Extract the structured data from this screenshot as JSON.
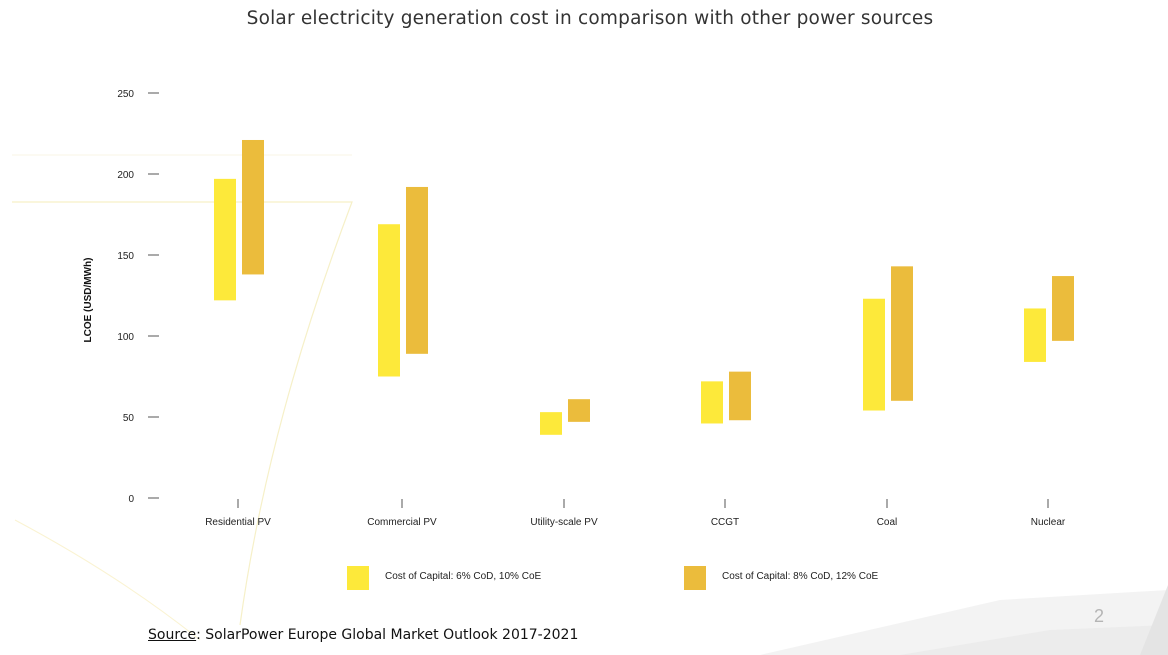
{
  "title": "Solar electricity generation cost in comparison with other power sources",
  "source": {
    "label": "Source",
    "text": ": SolarPower Europe Global Market Outlook 2017-2021"
  },
  "page_number": "2",
  "colors": {
    "series1": "#fde93a",
    "series2": "#ebbc3c",
    "text": "#222222"
  },
  "chart_data": {
    "type": "bar",
    "subtype": "floating-range",
    "title": "Solar electricity generation cost in comparison with other power sources",
    "xlabel": "",
    "ylabel": "LCOE (USD/MWh)",
    "ylim": [
      0,
      250
    ],
    "yticks": [
      0,
      50,
      100,
      150,
      200,
      250
    ],
    "grid": false,
    "legend_position": "bottom",
    "categories": [
      "Residential PV",
      "Commercial PV",
      "Utility-scale PV",
      "CCGT",
      "Coal",
      "Nuclear"
    ],
    "series": [
      {
        "name": "Cost of Capital: 6% CoD, 10% CoE",
        "color": "#fde93a",
        "ranges": [
          [
            122,
            197
          ],
          [
            75,
            169
          ],
          [
            39,
            53
          ],
          [
            46,
            72
          ],
          [
            54,
            123
          ],
          [
            84,
            117
          ]
        ]
      },
      {
        "name": "Cost of Capital: 8% CoD, 12% CoE",
        "color": "#ebbc3c",
        "ranges": [
          [
            138,
            221
          ],
          [
            89,
            192
          ],
          [
            47,
            61
          ],
          [
            48,
            78
          ],
          [
            60,
            143
          ],
          [
            97,
            137
          ]
        ]
      }
    ]
  }
}
